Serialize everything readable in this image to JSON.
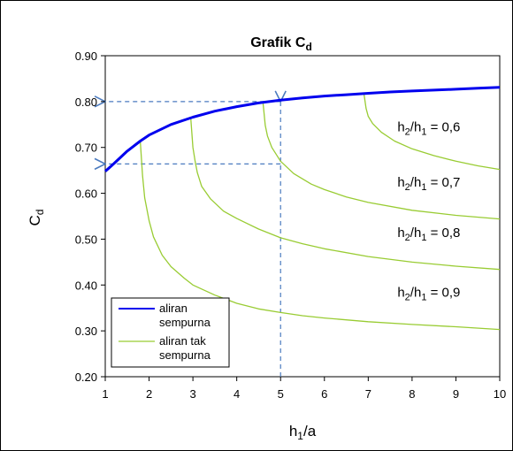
{
  "chart_data": {
    "type": "line",
    "title": {
      "main": "Grafik C",
      "sub": "d"
    },
    "xlabel": {
      "main": "h",
      "sub": "1",
      "rest": "/a"
    },
    "ylabel": {
      "main": "C",
      "sub": "d"
    },
    "xlim": [
      1,
      10
    ],
    "ylim": [
      0.2,
      0.9
    ],
    "x_ticks": [
      "1",
      "2",
      "3",
      "4",
      "5",
      "6",
      "7",
      "8",
      "9",
      "10"
    ],
    "y_ticks": [
      "0.20",
      "0.30",
      "0.40",
      "0.50",
      "0.60",
      "0.70",
      "0.80",
      "0.90"
    ],
    "grid": false,
    "legend_position": "bottom-left",
    "series": [
      {
        "name": "aliran sempurna",
        "color": "#0000ee",
        "x": [
          1.0,
          1.2,
          1.5,
          1.8,
          2.0,
          2.5,
          3.0,
          3.5,
          4.0,
          4.5,
          5.0,
          5.5,
          6.0,
          6.5,
          7.0,
          7.5,
          8.0,
          8.5,
          9.0,
          9.5,
          10.0
        ],
        "y": [
          0.648,
          0.665,
          0.692,
          0.714,
          0.727,
          0.75,
          0.766,
          0.779,
          0.789,
          0.797,
          0.803,
          0.808,
          0.812,
          0.815,
          0.818,
          0.821,
          0.823,
          0.825,
          0.827,
          0.829,
          0.831
        ]
      },
      {
        "name": "aliran tak sempurna",
        "color": "#99cc33",
        "x": [
          1.8,
          1.85,
          1.9,
          2.0,
          2.1,
          2.3,
          2.5,
          2.8,
          3.0,
          3.5,
          4.0,
          4.5,
          5.0,
          5.5,
          6.0,
          7.0,
          8.0,
          9.0,
          10.0
        ],
        "y": [
          0.714,
          0.64,
          0.59,
          0.54,
          0.505,
          0.465,
          0.44,
          0.415,
          0.4,
          0.378,
          0.36,
          0.348,
          0.34,
          0.333,
          0.328,
          0.32,
          0.314,
          0.309,
          0.303
        ]
      },
      {
        "name": "",
        "color": "#99cc33",
        "x": [
          2.95,
          3.0,
          3.05,
          3.1,
          3.2,
          3.4,
          3.7,
          4.0,
          4.5,
          5.0,
          5.5,
          6.0,
          7.0,
          8.0,
          9.0,
          10.0
        ],
        "y": [
          0.766,
          0.7,
          0.67,
          0.645,
          0.615,
          0.588,
          0.561,
          0.545,
          0.522,
          0.503,
          0.49,
          0.479,
          0.462,
          0.45,
          0.441,
          0.434
        ]
      },
      {
        "name": "",
        "color": "#99cc33",
        "x": [
          4.6,
          4.65,
          4.7,
          4.8,
          5.0,
          5.3,
          5.7,
          6.0,
          6.5,
          7.0,
          8.0,
          9.0,
          10.0
        ],
        "y": [
          0.797,
          0.748,
          0.725,
          0.7,
          0.67,
          0.643,
          0.62,
          0.608,
          0.592,
          0.58,
          0.563,
          0.552,
          0.544
        ]
      },
      {
        "name": "",
        "color": "#99cc33",
        "x": [
          6.9,
          6.95,
          7.0,
          7.1,
          7.3,
          7.6,
          8.0,
          8.5,
          9.0,
          9.5,
          10.0
        ],
        "y": [
          0.818,
          0.785,
          0.768,
          0.752,
          0.733,
          0.714,
          0.697,
          0.682,
          0.67,
          0.66,
          0.652
        ]
      }
    ],
    "annotations": [
      {
        "main": "h",
        "s1": "2",
        "mid": "/h",
        "s2": "1",
        "rest": " = 0,6",
        "x": 9.1,
        "y": 0.735
      },
      {
        "main": "h",
        "s1": "2",
        "mid": "/h",
        "s2": "1",
        "rest": " = 0,7",
        "x": 9.1,
        "y": 0.615
      },
      {
        "main": "h",
        "s1": "2",
        "mid": "/h",
        "s2": "1",
        "rest": " = 0,8",
        "x": 9.1,
        "y": 0.505
      },
      {
        "main": "h",
        "s1": "2",
        "mid": "/h",
        "s2": "1",
        "rest": " = 0,9",
        "x": 9.1,
        "y": 0.375
      }
    ],
    "guide_lines": {
      "color": "#4a7abf",
      "segments": [
        {
          "x1": 5.0,
          "y1": 0.2,
          "x2": 5.0,
          "y2": 0.8
        },
        {
          "x1": 5.0,
          "y1": 0.8,
          "x2": 1.0,
          "y2": 0.8
        },
        {
          "x1": 5.0,
          "y1": 0.664,
          "x2": 1.0,
          "y2": 0.664
        }
      ]
    },
    "legend": [
      {
        "line1": "aliran",
        "line2": "sempurna",
        "color": "#0000ee"
      },
      {
        "line1": "aliran tak",
        "line2": "sempurna",
        "color": "#99cc33"
      }
    ]
  }
}
